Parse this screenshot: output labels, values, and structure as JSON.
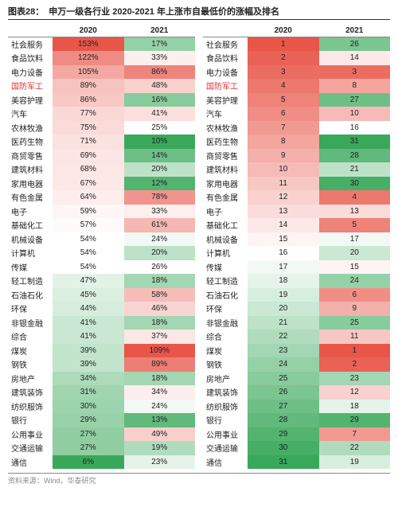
{
  "title_label": "图表28：",
  "title": "申万一级各行业 2020-2021 年上涨市自最低价的涨幅及排名",
  "source": "资料来源：Wind，华泰研究",
  "headers": {
    "col2020": "2020",
    "col2021": "2021"
  },
  "highlight_row": "国防军工",
  "color_scale_pct": {
    "min_color": "#e8564a",
    "max_color": "#39a85a",
    "min_val": 6,
    "max_val": 153
  },
  "color_scale_rank": {
    "min_color": "#e8564a",
    "max_color": "#39a85a",
    "min_val": 1,
    "max_val": 31
  },
  "rows": [
    {
      "name": "社会服务",
      "p20": 153,
      "p21": 17,
      "r20": 1,
      "r21": 26
    },
    {
      "name": "食品饮料",
      "p20": 122,
      "p21": 33,
      "r20": 2,
      "r21": 14
    },
    {
      "name": "电力设备",
      "p20": 105,
      "p21": 86,
      "r20": 3,
      "r21": 3
    },
    {
      "name": "国防军工",
      "p20": 89,
      "p21": 48,
      "r20": 4,
      "r21": 8
    },
    {
      "name": "美容护理",
      "p20": 86,
      "p21": 16,
      "r20": 5,
      "r21": 27
    },
    {
      "name": "汽车",
      "p20": 77,
      "p21": 41,
      "r20": 6,
      "r21": 10
    },
    {
      "name": "农林牧渔",
      "p20": 75,
      "p21": 25,
      "r20": 7,
      "r21": 16
    },
    {
      "name": "医药生物",
      "p20": 71,
      "p21": 10,
      "r20": 8,
      "r21": 31
    },
    {
      "name": "商贸零售",
      "p20": 69,
      "p21": 14,
      "r20": 9,
      "r21": 28
    },
    {
      "name": "建筑材料",
      "p20": 68,
      "p21": 20,
      "r20": 10,
      "r21": 21
    },
    {
      "name": "家用电器",
      "p20": 67,
      "p21": 12,
      "r20": 11,
      "r21": 30
    },
    {
      "name": "有色金属",
      "p20": 64,
      "p21": 78,
      "r20": 12,
      "r21": 4
    },
    {
      "name": "电子",
      "p20": 59,
      "p21": 33,
      "r20": 13,
      "r21": 13
    },
    {
      "name": "基础化工",
      "p20": 57,
      "p21": 61,
      "r20": 14,
      "r21": 5
    },
    {
      "name": "机械设备",
      "p20": 54,
      "p21": 24,
      "r20": 15,
      "r21": 17
    },
    {
      "name": "计算机",
      "p20": 54,
      "p21": 20,
      "r20": 16,
      "r21": 20
    },
    {
      "name": "传媒",
      "p20": 54,
      "p21": 26,
      "r20": 17,
      "r21": 15
    },
    {
      "name": "轻工制造",
      "p20": 47,
      "p21": 18,
      "r20": 18,
      "r21": 24
    },
    {
      "name": "石油石化",
      "p20": 45,
      "p21": 58,
      "r20": 19,
      "r21": 6
    },
    {
      "name": "环保",
      "p20": 44,
      "p21": 46,
      "r20": 20,
      "r21": 9
    },
    {
      "name": "非银金融",
      "p20": 41,
      "p21": 18,
      "r20": 21,
      "r21": 25
    },
    {
      "name": "综合",
      "p20": 41,
      "p21": 37,
      "r20": 22,
      "r21": 11
    },
    {
      "name": "煤炭",
      "p20": 39,
      "p21": 109,
      "r20": 23,
      "r21": 1
    },
    {
      "name": "钢铁",
      "p20": 39,
      "p21": 89,
      "r20": 24,
      "r21": 2
    },
    {
      "name": "房地产",
      "p20": 34,
      "p21": 18,
      "r20": 25,
      "r21": 23
    },
    {
      "name": "建筑装饰",
      "p20": 31,
      "p21": 34,
      "r20": 26,
      "r21": 12
    },
    {
      "name": "纺织服饰",
      "p20": 30,
      "p21": 24,
      "r20": 27,
      "r21": 18
    },
    {
      "name": "银行",
      "p20": 29,
      "p21": 13,
      "r20": 28,
      "r21": 29
    },
    {
      "name": "公用事业",
      "p20": 27,
      "p21": 49,
      "r20": 29,
      "r21": 7
    },
    {
      "name": "交通运输",
      "p20": 27,
      "p21": 19,
      "r20": 30,
      "r21": 22
    },
    {
      "name": "通信",
      "p20": 6,
      "p21": 23,
      "r20": 31,
      "r21": 19
    }
  ]
}
